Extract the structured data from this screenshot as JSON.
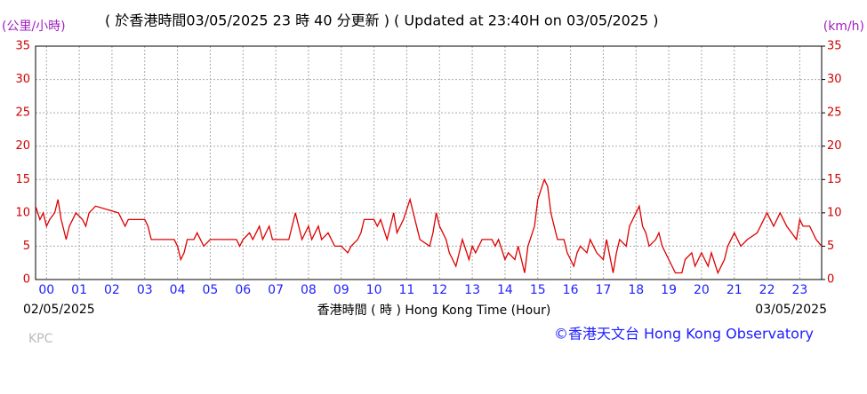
{
  "chart_data": {
    "type": "line",
    "title": "( 於香港時間03/05/2025 23 時 40 分更新 ) ( Updated at 23:40H on 03/05/2025 )",
    "y_label": "(公里/小時)",
    "y2_label": "(km/h)",
    "x_label": "香港時間 ( 時 )  Hong Kong Time (Hour)",
    "start_date": "02/05/2025",
    "end_date": "03/05/2025",
    "station": "KPC",
    "credit": "©香港天文台 Hong Kong Observatory",
    "color": "#dd0000",
    "grid": true,
    "xlim": [
      -0.333,
      23.667
    ],
    "xticks": [
      {
        "value": 0,
        "label": "00"
      },
      {
        "value": 1,
        "label": "01"
      },
      {
        "value": 2,
        "label": "02"
      },
      {
        "value": 3,
        "label": "03"
      },
      {
        "value": 4,
        "label": "04"
      },
      {
        "value": 5,
        "label": "05"
      },
      {
        "value": 6,
        "label": "06"
      },
      {
        "value": 7,
        "label": "07"
      },
      {
        "value": 8,
        "label": "08"
      },
      {
        "value": 9,
        "label": "09"
      },
      10,
      11,
      12,
      13,
      14,
      15,
      16,
      17,
      18,
      19,
      20,
      21,
      22,
      23
    ],
    "ylim": [
      0,
      35
    ],
    "yticks": [
      0,
      5,
      10,
      15,
      20,
      25,
      30,
      35
    ],
    "y2lim": [
      0,
      35
    ],
    "y2ticks": [
      0,
      5,
      10,
      15,
      20,
      25,
      30,
      35
    ],
    "x": [
      -0.333,
      -0.2,
      -0.1,
      0,
      0.1,
      0.25,
      0.35,
      0.45,
      0.5,
      0.6,
      0.7,
      0.9,
      1.1,
      1.2,
      1.3,
      1.5,
      2.2,
      2.3,
      2.4,
      2.5,
      3.0,
      3.1,
      3.2,
      3.9,
      4.0,
      4.1,
      4.2,
      4.3,
      4.5,
      4.6,
      4.8,
      5.0,
      5.8,
      5.9,
      6.0,
      6.2,
      6.3,
      6.5,
      6.6,
      6.8,
      6.9,
      7.4,
      7.5,
      7.6,
      7.7,
      7.8,
      8.0,
      8.1,
      8.2,
      8.3,
      8.4,
      8.6,
      8.8,
      9.0,
      9.2,
      9.3,
      9.5,
      9.6,
      9.7,
      10.0,
      10.1,
      10.2,
      10.4,
      10.5,
      10.6,
      10.7,
      10.9,
      11.1,
      11.2,
      11.4,
      11.7,
      11.8,
      11.9,
      12.0,
      12.2,
      12.3,
      12.5,
      12.6,
      12.7,
      12.9,
      13.0,
      13.1,
      13.3,
      13.6,
      13.7,
      13.8,
      14.0,
      14.1,
      14.3,
      14.4,
      14.6,
      14.7,
      14.9,
      15.0,
      15.2,
      15.3,
      15.4,
      15.6,
      15.8,
      15.9,
      16.1,
      16.2,
      16.3,
      16.5,
      16.6,
      16.7,
      16.8,
      17.0,
      17.1,
      17.3,
      17.4,
      17.5,
      17.7,
      17.8,
      18.1,
      18.2,
      18.3,
      18.4,
      18.6,
      18.7,
      18.8,
      19.0,
      19.2,
      19.4,
      19.5,
      19.7,
      19.8,
      20.0,
      20.1,
      20.2,
      20.3,
      20.5,
      20.7,
      20.8,
      21.0,
      21.1,
      21.2,
      21.4,
      21.7,
      21.8,
      22.0,
      22.2,
      22.4,
      22.6,
      22.9,
      23.0,
      23.1,
      23.3,
      23.5,
      23.667
    ],
    "values": [
      11,
      9,
      10,
      8,
      9,
      10,
      12,
      9,
      8,
      6,
      8,
      10,
      9,
      8,
      10,
      11,
      10,
      9,
      8,
      9,
      9,
      8,
      6,
      6,
      5,
      3,
      4,
      6,
      6,
      7,
      5,
      6,
      6,
      5,
      6,
      7,
      6,
      8,
      6,
      8,
      6,
      6,
      8,
      10,
      8,
      6,
      8,
      6,
      7,
      8,
      6,
      7,
      5,
      5,
      4,
      5,
      6,
      7,
      9,
      9,
      8,
      9,
      6,
      8,
      10,
      7,
      9,
      12,
      10,
      6,
      5,
      7,
      10,
      8,
      6,
      4,
      2,
      4,
      6,
      3,
      5,
      4,
      6,
      6,
      5,
      6,
      3,
      4,
      3,
      5,
      1,
      5,
      8,
      12,
      15,
      14,
      10,
      6,
      6,
      4,
      2,
      4,
      5,
      4,
      6,
      5,
      4,
      3,
      6,
      1,
      4,
      6,
      5,
      8,
      11,
      8,
      7,
      5,
      6,
      7,
      5,
      3,
      1,
      1,
      3,
      4,
      2,
      4,
      3,
      2,
      4,
      1,
      3,
      5,
      7,
      6,
      5,
      6,
      7,
      8,
      10,
      8,
      10,
      8,
      6,
      9,
      8,
      8,
      6,
      5
    ]
  }
}
